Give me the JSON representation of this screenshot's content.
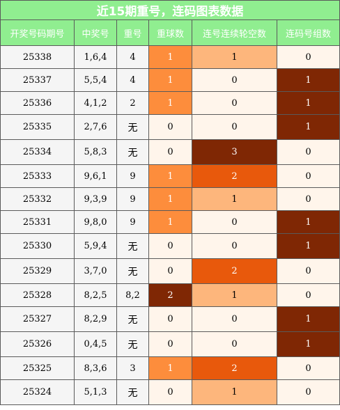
{
  "title": "近15期重号，连码图表数据",
  "headers": [
    "开奖号码期号",
    "中奖号",
    "重号",
    "重球数",
    "连号连续轮空数",
    "连码号组数"
  ],
  "rows": [
    {
      "issue": "25338",
      "winning": "1,6,4",
      "repeat": "4",
      "repeat_count": 1,
      "consec_miss": 1,
      "consec_groups": 0
    },
    {
      "issue": "25337",
      "winning": "5,5,4",
      "repeat": "4",
      "repeat_count": 1,
      "consec_miss": 0,
      "consec_groups": 1
    },
    {
      "issue": "25336",
      "winning": "4,1,2",
      "repeat": "2",
      "repeat_count": 1,
      "consec_miss": 0,
      "consec_groups": 1
    },
    {
      "issue": "25335",
      "winning": "2,7,6",
      "repeat": "无",
      "repeat_count": 0,
      "consec_miss": 0,
      "consec_groups": 1
    },
    {
      "issue": "25334",
      "winning": "5,8,3",
      "repeat": "无",
      "repeat_count": 0,
      "consec_miss": 3,
      "consec_groups": 0
    },
    {
      "issue": "25333",
      "winning": "9,6,1",
      "repeat": "9",
      "repeat_count": 1,
      "consec_miss": 2,
      "consec_groups": 0
    },
    {
      "issue": "25332",
      "winning": "9,3,9",
      "repeat": "9",
      "repeat_count": 1,
      "consec_miss": 1,
      "consec_groups": 0
    },
    {
      "issue": "25331",
      "winning": "9,8,0",
      "repeat": "9",
      "repeat_count": 1,
      "consec_miss": 0,
      "consec_groups": 1
    },
    {
      "issue": "25330",
      "winning": "5,9,4",
      "repeat": "无",
      "repeat_count": 0,
      "consec_miss": 0,
      "consec_groups": 1
    },
    {
      "issue": "25329",
      "winning": "3,7,0",
      "repeat": "无",
      "repeat_count": 0,
      "consec_miss": 2,
      "consec_groups": 0
    },
    {
      "issue": "25328",
      "winning": "8,2,5",
      "repeat": "8,2",
      "repeat_count": 2,
      "consec_miss": 1,
      "consec_groups": 0
    },
    {
      "issue": "25327",
      "winning": "8,2,9",
      "repeat": "无",
      "repeat_count": 0,
      "consec_miss": 0,
      "consec_groups": 1
    },
    {
      "issue": "25326",
      "winning": "0,4,5",
      "repeat": "无",
      "repeat_count": 0,
      "consec_miss": 0,
      "consec_groups": 1
    },
    {
      "issue": "25325",
      "winning": "8,3,6",
      "repeat": "3",
      "repeat_count": 1,
      "consec_miss": 2,
      "consec_groups": 0
    },
    {
      "issue": "25324",
      "winning": "5,1,3",
      "repeat": "无",
      "repeat_count": 0,
      "consec_miss": 1,
      "consec_groups": 0
    }
  ],
  "colors": {
    "header_bg": "#90ee90",
    "level_0": "#fff5eb",
    "repeat_1": "#fd8d3c",
    "repeat_2": "#7f2704",
    "miss_1": "#fdb67c",
    "miss_2": "#e8590c",
    "miss_3": "#7f2704",
    "group_1": "#7f2704"
  }
}
